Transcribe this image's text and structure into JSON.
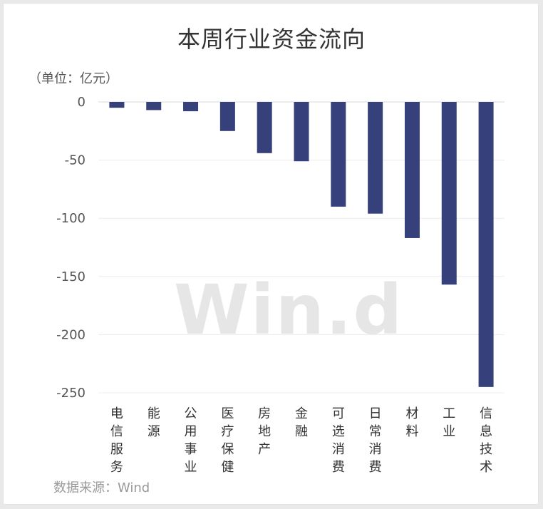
{
  "title": "本周行业资金流向",
  "unit_label": "（单位：亿元）",
  "source": "数据来源：Wind",
  "watermark": "Win.d",
  "colors": {
    "bar": "#36407a",
    "grid": "#ececec",
    "axis": "#d8d8d8"
  },
  "chart_data": {
    "type": "bar",
    "title": "本周行业资金流向",
    "ylabel": "（单位：亿元）",
    "xlabel": "",
    "categories": [
      "电信服务",
      "能源",
      "公用事业",
      "医疗保健",
      "房地产",
      "金融",
      "可选消费",
      "日常消费",
      "材料",
      "工业",
      "信息技术"
    ],
    "values": [
      -5,
      -7,
      -8,
      -25,
      -44,
      -51,
      -90,
      -96,
      -117,
      -157,
      -245
    ],
    "ylim": [
      -250,
      0
    ],
    "yticks": [
      0,
      -50,
      -100,
      -150,
      -200,
      -250
    ],
    "grid": true,
    "legend": "none"
  }
}
